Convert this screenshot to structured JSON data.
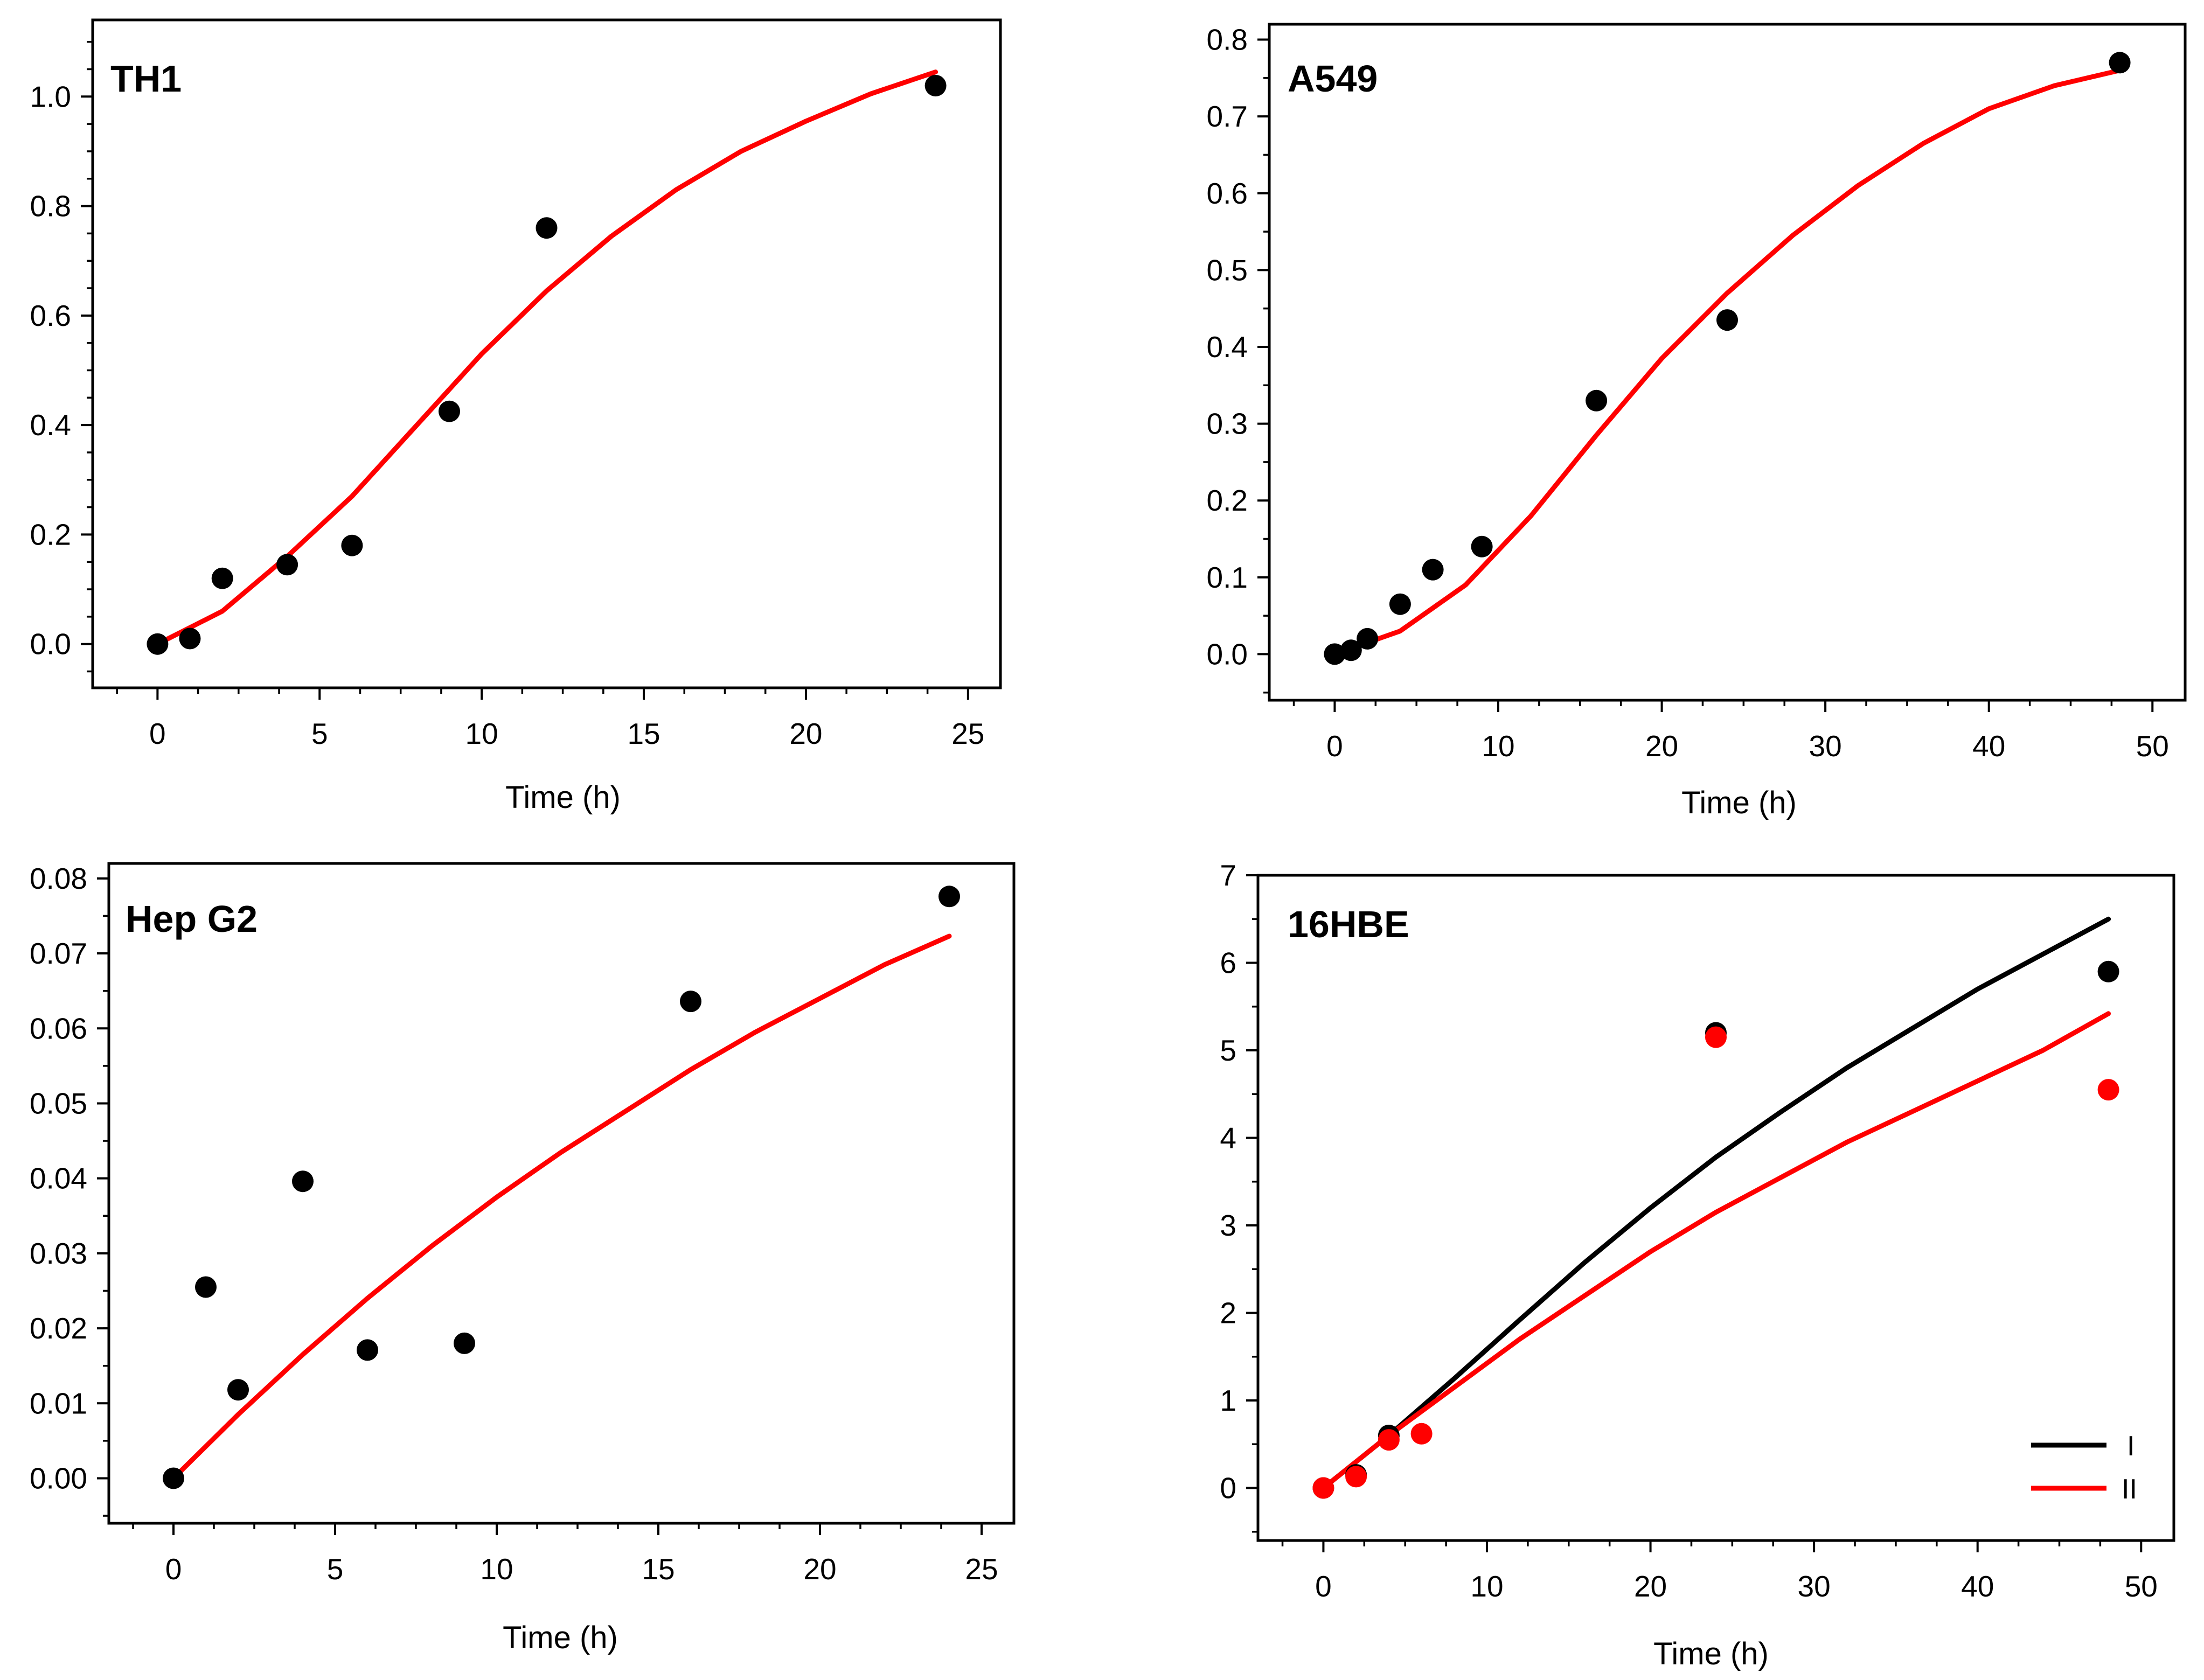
{
  "chart_data": [
    {
      "type": "scatter",
      "panel_label": "TH1",
      "xlabel": "Time (h)",
      "ylabel": "",
      "xlim": [
        -2,
        26
      ],
      "ylim": [
        -0.08,
        1.14
      ],
      "x_major_ticks": [
        0,
        5,
        10,
        15,
        20,
        25
      ],
      "x_tick_labels": [
        "0",
        "5",
        "10",
        "15",
        "20",
        "25"
      ],
      "x_minor_step": 1.25,
      "y_major_ticks": [
        0.0,
        0.2,
        0.4,
        0.6,
        0.8,
        1.0
      ],
      "y_tick_labels": [
        "0.0",
        "0.2",
        "0.4",
        "0.6",
        "0.8",
        "1.0"
      ],
      "y_minor_step": 0.05,
      "series": [
        {
          "name": "data",
          "kind": "points",
          "color": "#000000",
          "x": [
            0,
            1,
            2,
            4,
            6,
            9,
            12,
            24
          ],
          "y": [
            0.0,
            0.01,
            0.12,
            0.145,
            0.18,
            0.425,
            0.76,
            1.02
          ]
        },
        {
          "name": "fit",
          "kind": "line",
          "color": "#ff0000",
          "x": [
            0,
            2,
            4,
            6,
            8,
            10,
            12,
            14,
            16,
            18,
            20,
            22,
            24
          ],
          "y": [
            0.0,
            0.06,
            0.16,
            0.27,
            0.4,
            0.53,
            0.645,
            0.745,
            0.83,
            0.9,
            0.955,
            1.005,
            1.045
          ]
        }
      ]
    },
    {
      "type": "scatter",
      "panel_label": "A549",
      "xlabel": "Time (h)",
      "ylabel": "",
      "xlim": [
        -4,
        52
      ],
      "ylim": [
        -0.06,
        0.82
      ],
      "x_major_ticks": [
        0,
        10,
        20,
        30,
        40,
        50
      ],
      "x_tick_labels": [
        "0",
        "10",
        "20",
        "30",
        "40",
        "50"
      ],
      "x_minor_step": 2.5,
      "y_major_ticks": [
        0.0,
        0.1,
        0.2,
        0.3,
        0.4,
        0.5,
        0.6,
        0.7,
        0.8
      ],
      "y_tick_labels": [
        "0.0",
        "0.1",
        "0.2",
        "0.3",
        "0.4",
        "0.5",
        "0.6",
        "0.7",
        "0.8"
      ],
      "y_minor_step": 0.05,
      "series": [
        {
          "name": "data",
          "kind": "points",
          "color": "#000000",
          "x": [
            0,
            1,
            2,
            4,
            6,
            9,
            16,
            24,
            48
          ],
          "y": [
            0.0,
            0.005,
            0.02,
            0.065,
            0.11,
            0.14,
            0.33,
            0.435,
            0.77
          ]
        },
        {
          "name": "fit",
          "kind": "line",
          "color": "#ff0000",
          "x": [
            0,
            4,
            8,
            12,
            16,
            20,
            24,
            28,
            32,
            36,
            40,
            44,
            48
          ],
          "y": [
            0.0,
            0.03,
            0.09,
            0.18,
            0.285,
            0.385,
            0.47,
            0.545,
            0.61,
            0.665,
            0.71,
            0.74,
            0.76
          ]
        }
      ]
    },
    {
      "type": "scatter",
      "panel_label": "Hep G2",
      "xlabel": "Time (h)",
      "ylabel": "",
      "xlim": [
        -2,
        26
      ],
      "ylim": [
        -0.006,
        0.082
      ],
      "x_major_ticks": [
        0,
        5,
        10,
        15,
        20,
        25
      ],
      "x_tick_labels": [
        "0",
        "5",
        "10",
        "15",
        "20",
        "25"
      ],
      "x_minor_step": 1.25,
      "y_major_ticks": [
        0.0,
        0.01,
        0.02,
        0.03,
        0.04,
        0.05,
        0.06,
        0.07,
        0.08
      ],
      "y_tick_labels": [
        "0.00",
        "0.01",
        "0.02",
        "0.03",
        "0.04",
        "0.05",
        "0.06",
        "0.07",
        "0.08"
      ],
      "y_minor_step": 0.005,
      "series": [
        {
          "name": "data",
          "kind": "points",
          "color": "#000000",
          "x": [
            0,
            1,
            2,
            4,
            6,
            9,
            16,
            24
          ],
          "y": [
            0.0,
            0.0255,
            0.0118,
            0.0396,
            0.0171,
            0.018,
            0.0636,
            0.0776
          ]
        },
        {
          "name": "fit",
          "kind": "line",
          "color": "#ff0000",
          "x": [
            0,
            2,
            4,
            6,
            8,
            10,
            12,
            14,
            16,
            18,
            20,
            22,
            24
          ],
          "y": [
            0.0,
            0.0085,
            0.0165,
            0.024,
            0.031,
            0.0375,
            0.0435,
            0.049,
            0.0545,
            0.0595,
            0.064,
            0.0685,
            0.0723
          ]
        }
      ]
    },
    {
      "type": "scatter",
      "panel_label": "16HBE",
      "xlabel": "Time (h)",
      "ylabel": "",
      "xlim": [
        -4,
        52
      ],
      "ylim": [
        -0.6,
        7.0
      ],
      "x_major_ticks": [
        0,
        10,
        20,
        30,
        40,
        50
      ],
      "x_tick_labels": [
        "0",
        "10",
        "20",
        "30",
        "40",
        "50"
      ],
      "x_minor_step": 2.5,
      "y_major_ticks": [
        0,
        1,
        2,
        3,
        4,
        5,
        6,
        7
      ],
      "y_tick_labels": [
        "0",
        "1",
        "2",
        "3",
        "4",
        "5",
        "6",
        "7"
      ],
      "y_minor_step": 0.5,
      "legend": {
        "position": "bottom-right",
        "entries": [
          {
            "label": "I",
            "color": "#000000"
          },
          {
            "label": "II",
            "color": "#ff0000"
          }
        ]
      },
      "series": [
        {
          "name": "I data",
          "kind": "points",
          "color": "#000000",
          "x": [
            0,
            2,
            4,
            24,
            48
          ],
          "y": [
            0.0,
            0.15,
            0.6,
            5.2,
            5.9
          ]
        },
        {
          "name": "II data",
          "kind": "points",
          "color": "#ff0000",
          "x": [
            0,
            2,
            4,
            6,
            24,
            48
          ],
          "y": [
            0.0,
            0.13,
            0.55,
            0.62,
            5.15,
            4.55
          ]
        },
        {
          "name": "I",
          "kind": "line",
          "color": "#000000",
          "x": [
            0,
            4,
            8,
            12,
            16,
            20,
            24,
            28,
            32,
            36,
            40,
            44,
            48
          ],
          "y": [
            0.0,
            0.6,
            1.25,
            1.92,
            2.58,
            3.2,
            3.78,
            4.3,
            4.8,
            5.25,
            5.7,
            6.1,
            6.5
          ]
        },
        {
          "name": "II",
          "kind": "line",
          "color": "#ff0000",
          "x": [
            0,
            4,
            8,
            12,
            16,
            20,
            24,
            28,
            32,
            36,
            40,
            44,
            48
          ],
          "y": [
            0.0,
            0.6,
            1.15,
            1.7,
            2.2,
            2.7,
            3.15,
            3.55,
            3.95,
            4.3,
            4.65,
            5.0,
            5.42
          ]
        }
      ]
    }
  ]
}
